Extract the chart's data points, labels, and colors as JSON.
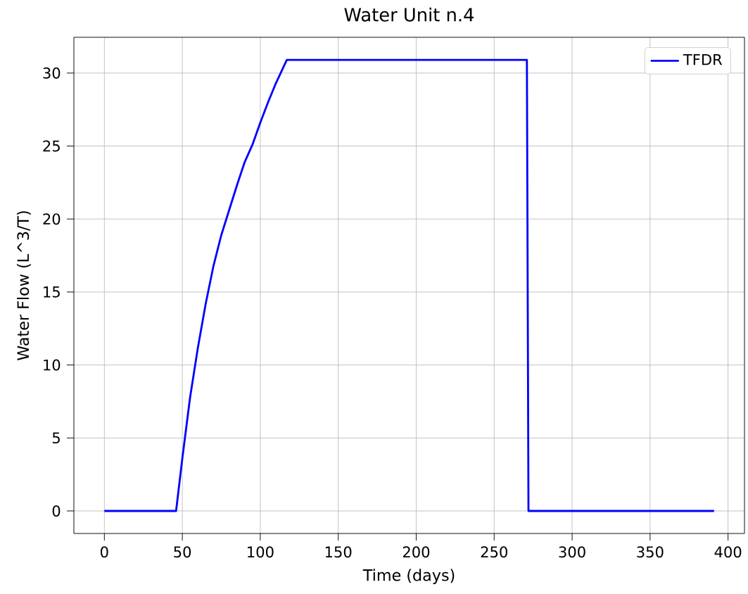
{
  "chart_data": {
    "type": "line",
    "title": "Water Unit n.4",
    "xlabel": "Time (days)",
    "ylabel": "Water Flow  (L^3/T)",
    "xlim": [
      -19.55,
      410.55
    ],
    "ylim": [
      -1.545,
      32.45
    ],
    "xticks": [
      0,
      50,
      100,
      150,
      200,
      250,
      300,
      350,
      400
    ],
    "yticks": [
      0,
      5,
      10,
      15,
      20,
      25,
      30
    ],
    "grid": true,
    "legend": "top right",
    "line_style": "solid",
    "marker": "none",
    "series": [
      {
        "name": "TFDR",
        "color": "#0000ff",
        "x": [
          0,
          46,
          50,
          55,
          60,
          65,
          70,
          75,
          80,
          85,
          90,
          95,
          100,
          105,
          110,
          117,
          271,
          272,
          391
        ],
        "values": [
          0,
          0,
          3.6,
          7.8,
          11.2,
          14.2,
          16.8,
          18.9,
          20.6,
          22.3,
          23.9,
          25.1,
          26.6,
          28,
          29.3,
          30.9,
          30.9,
          0,
          0
        ]
      }
    ]
  }
}
